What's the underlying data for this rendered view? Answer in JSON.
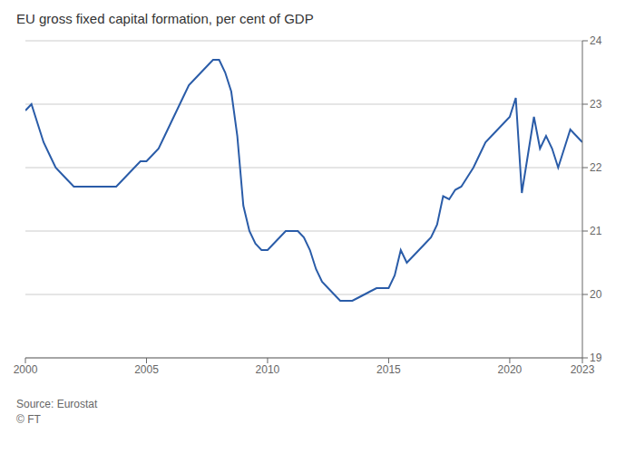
{
  "chart_data": {
    "type": "line",
    "title": "EU gross fixed capital formation, per cent of GDP",
    "annotations": [
      "Source: Eurostat",
      "© FT"
    ],
    "x": [
      2000.0,
      2000.25,
      2000.5,
      2000.75,
      2001.0,
      2001.25,
      2001.5,
      2001.75,
      2002.0,
      2002.25,
      2002.5,
      2002.75,
      2003.0,
      2003.25,
      2003.5,
      2003.75,
      2004.0,
      2004.25,
      2004.5,
      2004.75,
      2005.0,
      2005.25,
      2005.5,
      2005.75,
      2006.0,
      2006.25,
      2006.5,
      2006.75,
      2007.0,
      2007.25,
      2007.5,
      2007.75,
      2008.0,
      2008.25,
      2008.5,
      2008.75,
      2009.0,
      2009.25,
      2009.5,
      2009.75,
      2010.0,
      2010.25,
      2010.5,
      2010.75,
      2011.0,
      2011.25,
      2011.5,
      2011.75,
      2012.0,
      2012.25,
      2012.5,
      2012.75,
      2013.0,
      2013.25,
      2013.5,
      2013.75,
      2014.0,
      2014.25,
      2014.5,
      2014.75,
      2015.0,
      2015.25,
      2015.5,
      2015.75,
      2016.0,
      2016.25,
      2016.5,
      2016.75,
      2017.0,
      2017.25,
      2017.5,
      2017.75,
      2018.0,
      2018.25,
      2018.5,
      2018.75,
      2019.0,
      2019.25,
      2019.5,
      2019.75,
      2020.0,
      2020.25,
      2020.5,
      2020.75,
      2021.0,
      2021.25,
      2021.5,
      2021.75,
      2022.0,
      2022.25,
      2022.5,
      2022.75,
      2023.0
    ],
    "values": [
      22.9,
      23.0,
      22.7,
      22.4,
      22.2,
      22.0,
      21.9,
      21.8,
      21.7,
      21.7,
      21.7,
      21.7,
      21.7,
      21.7,
      21.7,
      21.7,
      21.8,
      21.9,
      22.0,
      22.1,
      22.1,
      22.2,
      22.3,
      22.5,
      22.7,
      22.9,
      23.1,
      23.3,
      23.4,
      23.5,
      23.6,
      23.7,
      23.7,
      23.5,
      23.2,
      22.5,
      21.4,
      21.0,
      20.8,
      20.7,
      20.7,
      20.8,
      20.9,
      21.0,
      21.0,
      21.0,
      20.9,
      20.7,
      20.4,
      20.2,
      20.1,
      20.0,
      19.9,
      19.9,
      19.9,
      19.95,
      20.0,
      20.05,
      20.1,
      20.1,
      20.1,
      20.3,
      20.7,
      20.5,
      20.6,
      20.7,
      20.8,
      20.9,
      21.1,
      21.55,
      21.5,
      21.65,
      21.7,
      21.85,
      22.0,
      22.2,
      22.4,
      22.5,
      22.6,
      22.7,
      22.8,
      23.1,
      21.6,
      22.2,
      22.8,
      22.3,
      22.5,
      22.3,
      22.0,
      22.3,
      22.6,
      22.5,
      22.4
    ],
    "color": "#2a5ca8",
    "xlim": [
      2000,
      2023
    ],
    "xticks": [
      2000,
      2005,
      2010,
      2015,
      2020,
      2023
    ],
    "ylim": [
      19,
      24
    ],
    "yticks": [
      19,
      20,
      21,
      22,
      23,
      24
    ],
    "grid": "y"
  }
}
